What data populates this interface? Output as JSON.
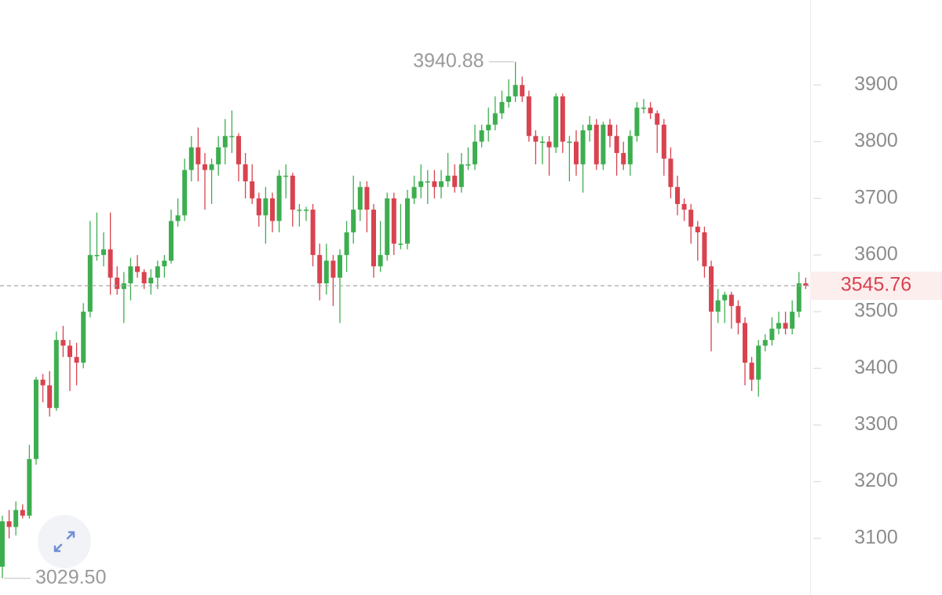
{
  "chart_data": {
    "type": "candlestick",
    "ylim": [
      3000,
      4050
    ],
    "yticks": [
      3100,
      3200,
      3300,
      3400,
      3500,
      3600,
      3700,
      3800,
      3900
    ],
    "up_color": "#3dae4f",
    "down_color": "#d8434f",
    "last_price": 3545.76,
    "high_marker": 3940.88,
    "low_marker": {
      "value": 3029.5,
      "label": "3029.50"
    },
    "ohlc": [
      [
        3050,
        3140,
        3029.5,
        3130
      ],
      [
        3130,
        3150,
        3100,
        3120
      ],
      [
        3120,
        3165,
        3105,
        3150
      ],
      [
        3150,
        3160,
        3135,
        3140
      ],
      [
        3140,
        3265,
        3135,
        3240
      ],
      [
        3240,
        3385,
        3230,
        3380
      ],
      [
        3380,
        3390,
        3340,
        3370
      ],
      [
        3370,
        3395,
        3315,
        3330
      ],
      [
        3330,
        3465,
        3325,
        3450
      ],
      [
        3450,
        3475,
        3420,
        3440
      ],
      [
        3440,
        3450,
        3360,
        3420
      ],
      [
        3420,
        3445,
        3370,
        3410
      ],
      [
        3410,
        3515,
        3400,
        3500
      ],
      [
        3500,
        3660,
        3490,
        3600
      ],
      [
        3600,
        3675,
        3590,
        3600
      ],
      [
        3600,
        3640,
        3580,
        3610
      ],
      [
        3610,
        3675,
        3530,
        3560
      ],
      [
        3560,
        3580,
        3530,
        3540
      ],
      [
        3540,
        3570,
        3480,
        3550
      ],
      [
        3550,
        3595,
        3520,
        3580
      ],
      [
        3580,
        3600,
        3560,
        3570
      ],
      [
        3570,
        3575,
        3540,
        3550
      ],
      [
        3550,
        3575,
        3530,
        3560
      ],
      [
        3560,
        3590,
        3540,
        3580
      ],
      [
        3580,
        3600,
        3560,
        3590
      ],
      [
        3590,
        3680,
        3585,
        3660
      ],
      [
        3660,
        3700,
        3650,
        3670
      ],
      [
        3670,
        3770,
        3660,
        3750
      ],
      [
        3750,
        3810,
        3730,
        3790
      ],
      [
        3790,
        3825,
        3730,
        3760
      ],
      [
        3760,
        3780,
        3680,
        3750
      ],
      [
        3750,
        3770,
        3690,
        3760
      ],
      [
        3760,
        3810,
        3740,
        3790
      ],
      [
        3790,
        3840,
        3760,
        3810
      ],
      [
        3810,
        3855,
        3780,
        3810
      ],
      [
        3810,
        3815,
        3730,
        3760
      ],
      [
        3760,
        3780,
        3700,
        3730
      ],
      [
        3730,
        3760,
        3690,
        3700
      ],
      [
        3700,
        3710,
        3650,
        3670
      ],
      [
        3670,
        3720,
        3620,
        3700
      ],
      [
        3700,
        3710,
        3640,
        3660
      ],
      [
        3660,
        3750,
        3640,
        3740
      ],
      [
        3740,
        3760,
        3700,
        3740
      ],
      [
        3740,
        3745,
        3650,
        3680
      ],
      [
        3680,
        3690,
        3650,
        3680
      ],
      [
        3680,
        3685,
        3660,
        3680
      ],
      [
        3680,
        3690,
        3580,
        3600
      ],
      [
        3600,
        3620,
        3520,
        3550
      ],
      [
        3550,
        3620,
        3530,
        3590
      ],
      [
        3590,
        3600,
        3510,
        3560
      ],
      [
        3560,
        3610,
        3480,
        3600
      ],
      [
        3600,
        3660,
        3570,
        3640
      ],
      [
        3640,
        3740,
        3620,
        3680
      ],
      [
        3680,
        3730,
        3660,
        3720
      ],
      [
        3720,
        3730,
        3640,
        3680
      ],
      [
        3680,
        3690,
        3560,
        3580
      ],
      [
        3580,
        3660,
        3570,
        3600
      ],
      [
        3600,
        3710,
        3590,
        3700
      ],
      [
        3700,
        3710,
        3600,
        3620
      ],
      [
        3620,
        3690,
        3610,
        3620
      ],
      [
        3620,
        3715,
        3610,
        3700
      ],
      [
        3700,
        3740,
        3690,
        3720
      ],
      [
        3720,
        3760,
        3700,
        3730
      ],
      [
        3730,
        3750,
        3690,
        3730
      ],
      [
        3730,
        3750,
        3700,
        3720
      ],
      [
        3720,
        3750,
        3700,
        3730
      ],
      [
        3730,
        3780,
        3720,
        3740
      ],
      [
        3740,
        3760,
        3710,
        3720
      ],
      [
        3720,
        3780,
        3710,
        3760
      ],
      [
        3760,
        3790,
        3750,
        3760
      ],
      [
        3760,
        3830,
        3750,
        3800
      ],
      [
        3800,
        3830,
        3790,
        3820
      ],
      [
        3820,
        3860,
        3800,
        3830
      ],
      [
        3830,
        3880,
        3820,
        3850
      ],
      [
        3850,
        3890,
        3840,
        3870
      ],
      [
        3870,
        3910,
        3860,
        3880
      ],
      [
        3880,
        3940.88,
        3870,
        3900
      ],
      [
        3900,
        3915,
        3870,
        3880
      ],
      [
        3880,
        3890,
        3800,
        3810
      ],
      [
        3810,
        3820,
        3760,
        3800
      ],
      [
        3800,
        3810,
        3760,
        3800
      ],
      [
        3800,
        3810,
        3740,
        3790
      ],
      [
        3790,
        3885,
        3780,
        3880
      ],
      [
        3880,
        3885,
        3780,
        3800
      ],
      [
        3800,
        3810,
        3730,
        3800
      ],
      [
        3800,
        3820,
        3740,
        3760
      ],
      [
        3760,
        3830,
        3710,
        3820
      ],
      [
        3820,
        3845,
        3800,
        3830
      ],
      [
        3830,
        3840,
        3750,
        3760
      ],
      [
        3760,
        3835,
        3750,
        3830
      ],
      [
        3830,
        3840,
        3790,
        3810
      ],
      [
        3810,
        3830,
        3740,
        3780
      ],
      [
        3780,
        3800,
        3750,
        3760
      ],
      [
        3760,
        3820,
        3740,
        3810
      ],
      [
        3810,
        3870,
        3800,
        3860
      ],
      [
        3860,
        3875,
        3850,
        3860
      ],
      [
        3860,
        3870,
        3840,
        3850
      ],
      [
        3850,
        3855,
        3780,
        3830
      ],
      [
        3830,
        3840,
        3740,
        3770
      ],
      [
        3770,
        3790,
        3700,
        3720
      ],
      [
        3720,
        3740,
        3670,
        3690
      ],
      [
        3690,
        3700,
        3660,
        3680
      ],
      [
        3680,
        3690,
        3620,
        3650
      ],
      [
        3650,
        3660,
        3590,
        3640
      ],
      [
        3640,
        3650,
        3560,
        3580
      ],
      [
        3580,
        3590,
        3430,
        3500
      ],
      [
        3500,
        3540,
        3480,
        3520
      ],
      [
        3520,
        3535,
        3480,
        3530
      ],
      [
        3530,
        3535,
        3470,
        3510
      ],
      [
        3510,
        3520,
        3460,
        3480
      ],
      [
        3480,
        3490,
        3370,
        3410
      ],
      [
        3410,
        3420,
        3360,
        3380
      ],
      [
        3380,
        3450,
        3350,
        3440
      ],
      [
        3440,
        3460,
        3430,
        3450
      ],
      [
        3450,
        3490,
        3440,
        3470
      ],
      [
        3470,
        3500,
        3460,
        3480
      ],
      [
        3480,
        3500,
        3460,
        3470
      ],
      [
        3470,
        3520,
        3460,
        3500
      ],
      [
        3500,
        3570,
        3490,
        3550
      ],
      [
        3550,
        3560,
        3540,
        3545.76
      ]
    ]
  }
}
